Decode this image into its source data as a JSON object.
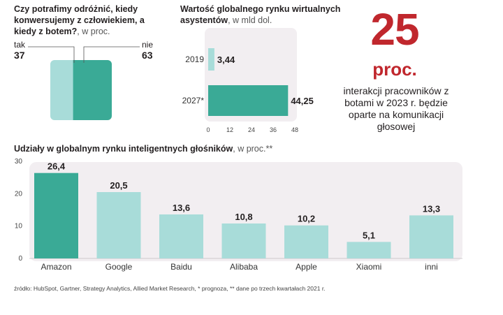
{
  "colors": {
    "accent": "#c0272d",
    "teal_dark": "#3aaa96",
    "teal_light": "#a8dcd9",
    "panel_bg": "#f2eef1",
    "text": "#231f20"
  },
  "survey": {
    "title": "Czy potrafimy odróżnić, kiedy konwersujemy z człowiekiem, a kiedy z botem?",
    "unit": ", w proc.",
    "yes_label": "tak",
    "yes_value": "37",
    "no_label": "nie",
    "no_value": "63",
    "chart_data": {
      "type": "pie",
      "categories": [
        "tak",
        "nie"
      ],
      "values": [
        37,
        63
      ]
    }
  },
  "market": {
    "title": "Wartość globalnego rynku wirtualnych asystentów",
    "unit": ", w mld dol.",
    "chart_data": {
      "type": "bar",
      "orientation": "horizontal",
      "categories": [
        "2019",
        "2027*"
      ],
      "values": [
        3.44,
        44.25
      ],
      "value_labels": [
        "3,44",
        "44,25"
      ],
      "xlim": [
        0,
        48
      ],
      "xticks": [
        0,
        12,
        24,
        36,
        48
      ]
    }
  },
  "highlight": {
    "number": "25",
    "unit": "proc.",
    "text": "interakcji pracowników z botami w 2023 r. będzie oparte na komunikacji głosowej"
  },
  "speakers": {
    "title": "Udziały w globalnym rynku inteligentnych głośników",
    "unit": ", w proc.**",
    "chart_data": {
      "type": "bar",
      "categories": [
        "Amazon",
        "Google",
        "Baidu",
        "Alibaba",
        "Apple",
        "Xiaomi",
        "inni"
      ],
      "values": [
        26.4,
        20.5,
        13.6,
        10.8,
        10.2,
        5.1,
        13.3
      ],
      "value_labels": [
        "26,4",
        "20,5",
        "13,6",
        "10,8",
        "10,2",
        "5,1",
        "13,3"
      ],
      "ylim": [
        0,
        30
      ],
      "yticks": [
        0,
        10,
        20,
        30
      ],
      "highlight_index": 0
    }
  },
  "source": "źródło: HubSpot, Gartner, Strategy Analytics, Allied Market Research, * prognoza, ** dane po trzech kwartałach 2021 r."
}
